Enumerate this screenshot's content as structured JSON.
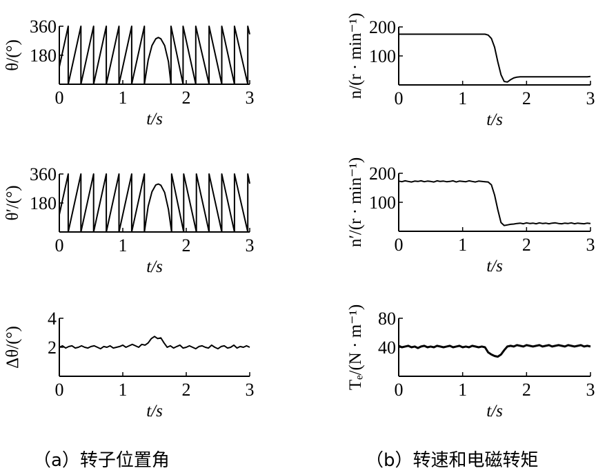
{
  "chart_data": [
    {
      "id": "theta",
      "type": "line",
      "xlabel": "t/s",
      "ylabel": "θ/(°)",
      "xlim": [
        0,
        3
      ],
      "ylim": [
        0,
        360
      ],
      "xticks": [
        "0",
        "1",
        "2",
        "3"
      ],
      "yticks": [
        "180",
        "360"
      ],
      "ytick_values": [
        180,
        360
      ],
      "grid": false,
      "vertices": [
        [
          0,
          108
        ],
        [
          0.14,
          360
        ],
        [
          0.14,
          0
        ],
        [
          0.34,
          360
        ],
        [
          0.34,
          0
        ],
        [
          0.54,
          360
        ],
        [
          0.54,
          0
        ],
        [
          0.74,
          360
        ],
        [
          0.74,
          0
        ],
        [
          0.94,
          360
        ],
        [
          0.94,
          0
        ],
        [
          1.14,
          360
        ],
        [
          1.14,
          0
        ],
        [
          1.34,
          360
        ],
        [
          1.34,
          0
        ],
        [
          1.4,
          150
        ],
        [
          1.46,
          240
        ],
        [
          1.52,
          282
        ],
        [
          1.56,
          290
        ],
        [
          1.6,
          282
        ],
        [
          1.66,
          240
        ],
        [
          1.72,
          140
        ],
        [
          1.76,
          0
        ],
        [
          1.76,
          360
        ],
        [
          1.95,
          0
        ],
        [
          1.95,
          360
        ],
        [
          2.15,
          0
        ],
        [
          2.15,
          360
        ],
        [
          2.36,
          0
        ],
        [
          2.36,
          360
        ],
        [
          2.56,
          0
        ],
        [
          2.56,
          360
        ],
        [
          2.76,
          0
        ],
        [
          2.76,
          360
        ],
        [
          2.97,
          0
        ],
        [
          2.97,
          360
        ],
        [
          3.0,
          310
        ]
      ]
    },
    {
      "id": "theta_est",
      "type": "line",
      "xlabel": "t/s",
      "ylabel": "θ′/(°)",
      "xlim": [
        0,
        3
      ],
      "ylim": [
        0,
        360
      ],
      "xticks": [
        "0",
        "1",
        "2",
        "3"
      ],
      "yticks": [
        "180",
        "360"
      ],
      "ytick_values": [
        180,
        360
      ],
      "grid": false,
      "vertices": [
        [
          0,
          108
        ],
        [
          0.14,
          360
        ],
        [
          0.14,
          0
        ],
        [
          0.34,
          360
        ],
        [
          0.34,
          0
        ],
        [
          0.54,
          360
        ],
        [
          0.54,
          0
        ],
        [
          0.74,
          360
        ],
        [
          0.74,
          0
        ],
        [
          0.94,
          360
        ],
        [
          0.94,
          0
        ],
        [
          1.14,
          360
        ],
        [
          1.14,
          0
        ],
        [
          1.34,
          360
        ],
        [
          1.34,
          0
        ],
        [
          1.4,
          160
        ],
        [
          1.46,
          250
        ],
        [
          1.52,
          292
        ],
        [
          1.56,
          298
        ],
        [
          1.6,
          290
        ],
        [
          1.66,
          245
        ],
        [
          1.72,
          140
        ],
        [
          1.77,
          0
        ],
        [
          1.77,
          360
        ],
        [
          1.96,
          0
        ],
        [
          1.96,
          360
        ],
        [
          2.16,
          0
        ],
        [
          2.16,
          360
        ],
        [
          2.36,
          0
        ],
        [
          2.36,
          360
        ],
        [
          2.56,
          0
        ],
        [
          2.56,
          360
        ],
        [
          2.76,
          0
        ],
        [
          2.76,
          360
        ],
        [
          2.97,
          0
        ],
        [
          2.97,
          360
        ],
        [
          3.0,
          300
        ]
      ]
    },
    {
      "id": "delta_theta",
      "type": "line",
      "xlabel": "t/s",
      "ylabel": "Δθ/(°)",
      "xlim": [
        0,
        3
      ],
      "ylim": [
        0,
        4
      ],
      "xticks": [
        "0",
        "1",
        "2",
        "3"
      ],
      "yticks": [
        "2",
        "4"
      ],
      "ytick_values": [
        2,
        4
      ],
      "grid": false,
      "x_step": 0.05,
      "values": [
        2.0,
        2.1,
        1.95,
        2.05,
        2.1,
        1.95,
        2.0,
        2.1,
        2.0,
        1.95,
        2.05,
        2.1,
        2.0,
        1.9,
        2.05,
        2.0,
        2.1,
        1.95,
        2.0,
        2.05,
        2.15,
        2.0,
        2.1,
        2.2,
        2.1,
        2.0,
        2.2,
        2.15,
        2.3,
        2.6,
        2.75,
        2.6,
        2.65,
        2.3,
        2.0,
        2.1,
        1.95,
        2.05,
        2.15,
        1.95,
        2.0,
        2.1,
        2.0,
        1.9,
        2.05,
        2.1,
        2.0,
        1.95,
        2.15,
        2.0,
        1.9,
        2.05,
        2.1,
        1.95,
        2.0,
        2.15,
        1.95,
        2.05,
        2.0,
        2.1,
        2.0
      ]
    },
    {
      "id": "speed",
      "type": "line",
      "xlabel": "t/s",
      "ylabel": "n/(r · min⁻¹)",
      "xlim": [
        0,
        3
      ],
      "ylim": [
        0,
        200
      ],
      "xticks": [
        "0",
        "1",
        "2",
        "3"
      ],
      "yticks": [
        "100",
        "200"
      ],
      "ytick_values": [
        100,
        200
      ],
      "grid": false,
      "x_step": 0.05,
      "values": [
        175,
        175,
        175,
        175,
        175,
        175,
        175,
        175,
        175,
        175,
        175,
        175,
        175,
        175,
        175,
        175,
        175,
        175,
        175,
        175,
        175,
        175,
        175,
        175,
        175,
        175,
        175,
        175,
        172,
        160,
        130,
        80,
        35,
        12,
        10,
        18,
        24,
        27,
        28,
        28,
        28,
        28,
        28,
        28,
        28,
        28,
        28,
        28,
        28,
        28,
        28,
        28,
        28,
        28,
        28,
        28,
        28,
        28,
        28,
        28,
        29
      ]
    },
    {
      "id": "speed_est",
      "type": "line",
      "xlabel": "t/s",
      "ylabel": "n′/(r · min⁻¹)",
      "xlim": [
        0,
        3
      ],
      "ylim": [
        0,
        200
      ],
      "xticks": [
        "0",
        "1",
        "2",
        "3"
      ],
      "yticks": [
        "100",
        "200"
      ],
      "ytick_values": [
        100,
        200
      ],
      "grid": false,
      "x_step": 0.05,
      "values": [
        173,
        171,
        174,
        172,
        170,
        173,
        172,
        174,
        171,
        173,
        172,
        170,
        174,
        172,
        173,
        171,
        172,
        174,
        170,
        173,
        172,
        171,
        174,
        172,
        170,
        173,
        172,
        171,
        170,
        160,
        125,
        75,
        30,
        20,
        22,
        24,
        25,
        27,
        28,
        26,
        29,
        27,
        28,
        26,
        29,
        27,
        28,
        26,
        28,
        29,
        27,
        26,
        28,
        27,
        29,
        26,
        28,
        27,
        26,
        28,
        27
      ]
    },
    {
      "id": "torque",
      "type": "line",
      "xlabel": "t/s",
      "ylabel": "Tₑ/(N · m⁻¹)",
      "xlim": [
        0,
        3
      ],
      "ylim": [
        0,
        80
      ],
      "xticks": [
        "0",
        "1",
        "2",
        "3"
      ],
      "yticks": [
        "40",
        "80"
      ],
      "ytick_values": [
        40,
        80
      ],
      "grid": false,
      "x_step": 0.05,
      "values": [
        42,
        40,
        41,
        42,
        40,
        41,
        39,
        41,
        42,
        40,
        41,
        40,
        42,
        41,
        40,
        41,
        42,
        40,
        41,
        42,
        40,
        41,
        40,
        42,
        41,
        40,
        41,
        40,
        33,
        30,
        28,
        27,
        30,
        36,
        41,
        42,
        41,
        43,
        42,
        41,
        43,
        42,
        41,
        42,
        43,
        41,
        42,
        43,
        41,
        42,
        43,
        42,
        41,
        43,
        42,
        41,
        42,
        43,
        41,
        42,
        41
      ]
    }
  ],
  "captions": {
    "a": "（a）转子位置角",
    "b": "（b）转速和电磁转矩"
  }
}
